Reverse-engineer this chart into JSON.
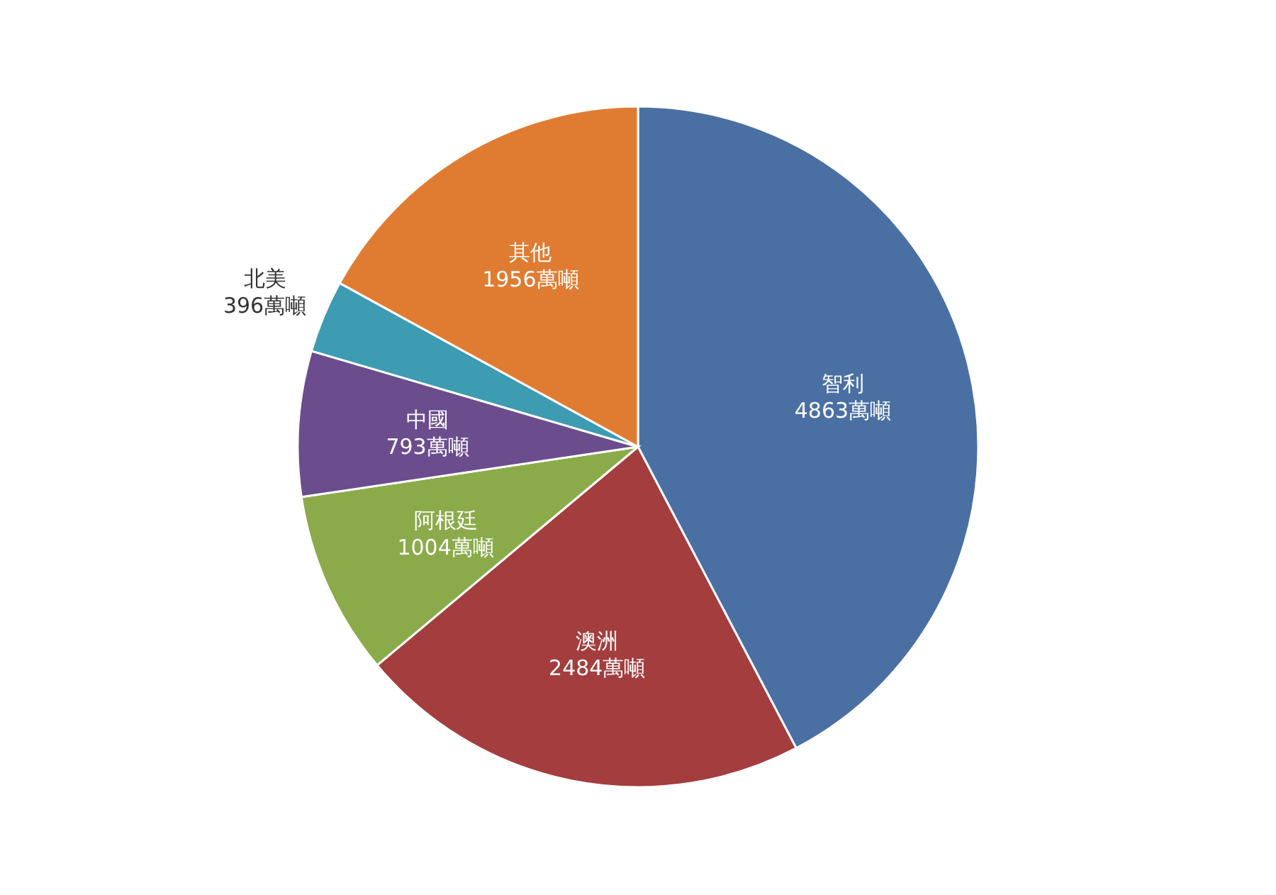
{
  "chart_data": {
    "type": "pie",
    "categories": [
      "智利",
      "澳洲",
      "阿根廷",
      "中國",
      "北美",
      "其他"
    ],
    "values": [
      4863,
      2484,
      1004,
      793,
      396,
      1956
    ],
    "value_labels": [
      "4863萬噸",
      "2484萬噸",
      "1004萬噸",
      "793萬噸",
      "396萬噸",
      "1956萬噸"
    ],
    "colors": [
      "#4a70a3",
      "#a33d3e",
      "#8bab4a",
      "#6b4d8e",
      "#3d9bb2",
      "#e07c32"
    ]
  }
}
